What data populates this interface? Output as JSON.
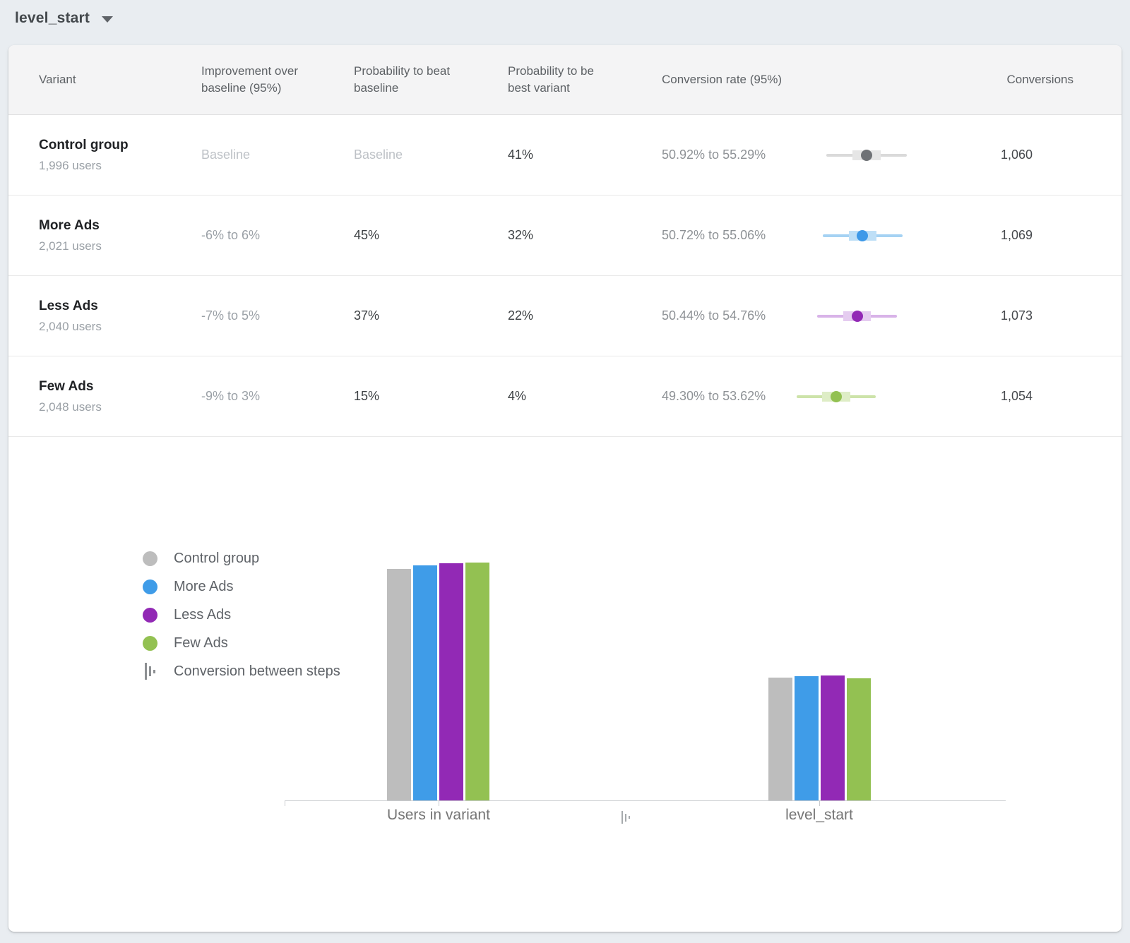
{
  "toolbar": {
    "selector_label": "level_start"
  },
  "table": {
    "columns": [
      "Variant",
      "Improvement over baseline (95%)",
      "Probability to beat baseline",
      "Probability to be best variant",
      "Conversion rate (95%)",
      "Conversions"
    ],
    "rows": [
      {
        "variant": "Control group",
        "users": "1,996 users",
        "improvement": "Baseline",
        "prob_beat": "Baseline",
        "prob_best": "41%",
        "conv_rate": "50.92% to 55.29%",
        "conversions": "1,060",
        "ci": {
          "low": 50.92,
          "high": 55.29,
          "colors": {
            "line": "#dadada",
            "box": "#e6e6e6",
            "dot": "#6f7276"
          }
        }
      },
      {
        "variant": "More Ads",
        "users": "2,021 users",
        "improvement": "-6% to 6%",
        "prob_beat": "45%",
        "prob_best": "32%",
        "conv_rate": "50.72% to 55.06%",
        "conversions": "1,069",
        "ci": {
          "low": 50.72,
          "high": 55.06,
          "colors": {
            "line": "#a5d2f3",
            "box": "#bedff7",
            "dot": "#3e99e8"
          }
        }
      },
      {
        "variant": "Less Ads",
        "users": "2,040 users",
        "improvement": "-7% to 5%",
        "prob_beat": "37%",
        "prob_best": "22%",
        "conv_rate": "50.44% to 54.76%",
        "conversions": "1,073",
        "ci": {
          "low": 50.44,
          "high": 54.76,
          "colors": {
            "line": "#d8b3e8",
            "box": "#e5ccf0",
            "dot": "#9229b5"
          }
        }
      },
      {
        "variant": "Few Ads",
        "users": "2,048 users",
        "improvement": "-9% to 3%",
        "prob_beat": "15%",
        "prob_best": "4%",
        "conv_rate": "49.30% to 53.62%",
        "conversions": "1,054",
        "ci": {
          "low": 49.3,
          "high": 53.62,
          "colors": {
            "line": "#cde3a9",
            "box": "#deedc6",
            "dot": "#93c152"
          }
        }
      }
    ]
  },
  "chart_data": {
    "type": "bar",
    "categories": [
      "Users in variant",
      "level_start"
    ],
    "series": [
      {
        "name": "Control group",
        "color": "#bdbdbd",
        "values": [
          1996,
          1060
        ]
      },
      {
        "name": "More Ads",
        "color": "#3f9ce8",
        "values": [
          2021,
          1069
        ]
      },
      {
        "name": "Less Ads",
        "color": "#9229b5",
        "values": [
          2040,
          1073
        ]
      },
      {
        "name": "Few Ads",
        "color": "#93c152",
        "values": [
          2048,
          1054
        ]
      }
    ],
    "legend_extra": "Conversion between steps",
    "ylim": [
      0,
      2048
    ],
    "grid": false,
    "legend_position": "left"
  }
}
